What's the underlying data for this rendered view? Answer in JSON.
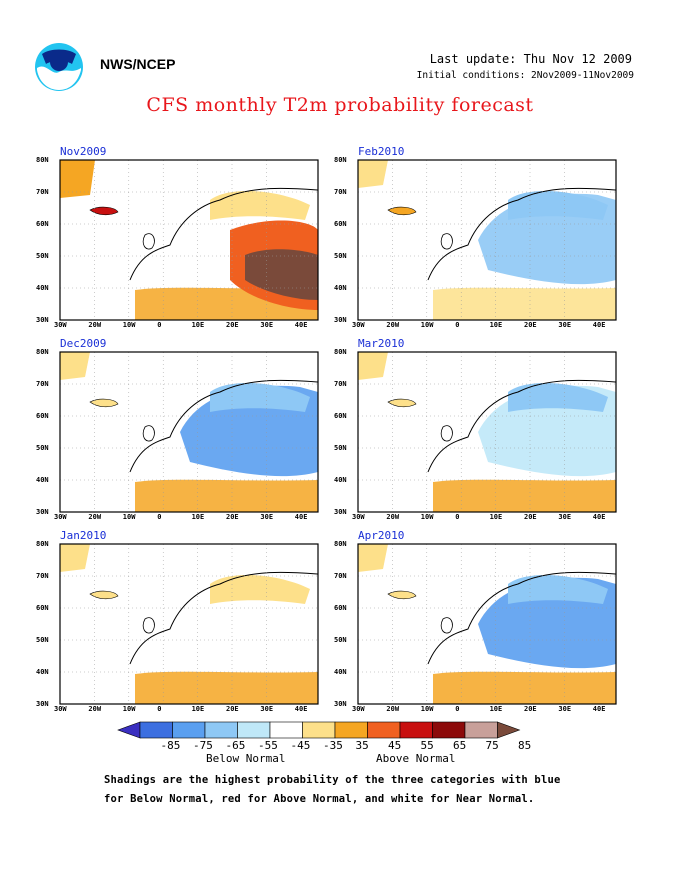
{
  "header": {
    "agency": "NWS/NCEP",
    "last_update": "Last update: Thu Nov 12 2009",
    "initial_conditions": "Initial conditions: 2Nov2009-11Nov2009",
    "title": "CFS monthly T2m probability forecast"
  },
  "axes": {
    "lat_labels": [
      "80N",
      "70N",
      "60N",
      "50N",
      "40N",
      "30N"
    ],
    "lon_labels": [
      "30W",
      "20W",
      "10W",
      "0",
      "10E",
      "20E",
      "30E",
      "40E"
    ]
  },
  "panels": [
    {
      "title": "Nov2009",
      "icon": "anomaly-map"
    },
    {
      "title": "Feb2010",
      "icon": "anomaly-map"
    },
    {
      "title": "Dec2009",
      "icon": "anomaly-map"
    },
    {
      "title": "Mar2010",
      "icon": "anomaly-map"
    },
    {
      "title": "Jan2010",
      "icon": "anomaly-map"
    },
    {
      "title": "Apr2010",
      "icon": "anomaly-map"
    }
  ],
  "legend": {
    "labels": [
      "-85",
      "-75",
      "-65",
      "-55",
      "-45",
      "-35",
      "35",
      "45",
      "55",
      "65",
      "75",
      "85"
    ],
    "below_label": "Below Normal",
    "above_label": "Above Normal",
    "colors": [
      "#3a2fc0",
      "#3c6fe0",
      "#5a9ff0",
      "#8ec8f5",
      "#bfe8f8",
      "#ffffff",
      "#fde08a",
      "#f5a623",
      "#f06020",
      "#c81010",
      "#8c0a0a",
      "#c8a09a",
      "#7a4a3a"
    ]
  },
  "footnote": {
    "line1": "Shadings are the highest probability of the three categories with blue",
    "line2": "for Below Normal, red for Above Normal, and white for Near Normal."
  }
}
